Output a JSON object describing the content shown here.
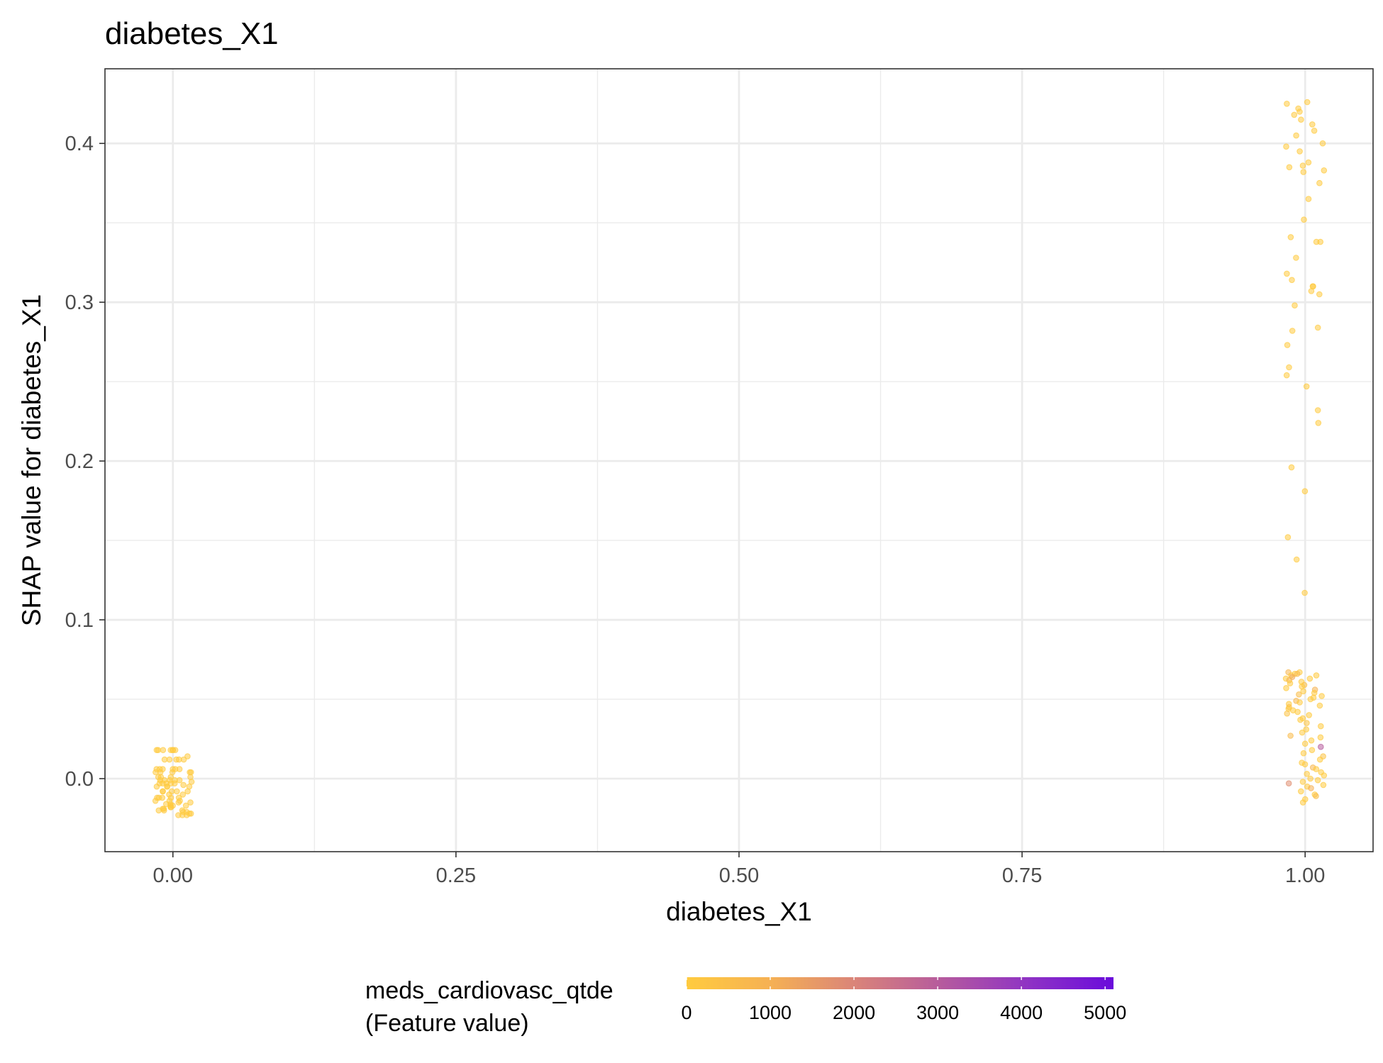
{
  "chart_data": {
    "type": "scatter",
    "title": "diabetes_X1",
    "xlabel": "diabetes_X1",
    "ylabel": "SHAP value for diabetes_X1",
    "xlim": [
      -0.06,
      1.06
    ],
    "ylim": [
      -0.046,
      0.447
    ],
    "x_ticks": [
      0.0,
      0.25,
      0.5,
      0.75,
      1.0
    ],
    "x_tick_labels": [
      "0.00",
      "0.25",
      "0.50",
      "0.75",
      "1.00"
    ],
    "y_ticks": [
      0.0,
      0.1,
      0.2,
      0.3,
      0.4
    ],
    "y_tick_labels": [
      "0.0",
      "0.1",
      "0.2",
      "0.3",
      "0.4"
    ],
    "grid": true,
    "legend": {
      "position": "bottom",
      "title_lines": [
        "meds_cardiovasc_qtde",
        "(Feature value)"
      ],
      "min": 0,
      "max": 5100,
      "ticks": [
        0,
        1000,
        2000,
        3000,
        4000,
        5000
      ],
      "colors": [
        "#ffcb3f",
        "#f5b054",
        "#d9837a",
        "#b55a9e",
        "#8f33c4",
        "#6a0bdb"
      ]
    },
    "series": [
      {
        "x": [
          0.0,
          0.0,
          0.0,
          0.0,
          0.0,
          0.0,
          0.0,
          0.0,
          0.0,
          0.0,
          0.0,
          0.0,
          0.0,
          0.0,
          0.0,
          0.0,
          0.0,
          0.0,
          0.0,
          0.0,
          0.0,
          0.0,
          0.0,
          0.0,
          0.0,
          0.0,
          0.0,
          0.0,
          0.0,
          0.0,
          0.0,
          0.0,
          0.0,
          0.0,
          0.0,
          0.0,
          0.0,
          0.0,
          0.0,
          0.0,
          0.0,
          0.0,
          0.0,
          0.0,
          0.0,
          0.0,
          0.0,
          0.0,
          0.0,
          0.0,
          0.0,
          0.0,
          0.0,
          0.0,
          0.0,
          0.0,
          0.0,
          0.0,
          0.0,
          0.0,
          0.0,
          0.0,
          0.0,
          0.0,
          0.0,
          0.0,
          0.0,
          0.0,
          0.0,
          0.0,
          0.0,
          0.0,
          0.0,
          0.0,
          0.0,
          0.0,
          0.0,
          0.0,
          0.0,
          0.0
        ],
        "y": [
          0.018,
          0.018,
          0.018,
          0.018,
          0.018,
          0.018,
          0.018,
          0.014,
          0.012,
          0.012,
          0.012,
          0.012,
          0.012,
          0.006,
          0.006,
          0.006,
          0.006,
          0.006,
          0.006,
          0.004,
          0.004,
          0.004,
          0.004,
          0.004,
          0.001,
          0.001,
          0.001,
          0.001,
          -0.001,
          -0.001,
          -0.001,
          -0.001,
          -0.001,
          -0.002,
          -0.003,
          -0.003,
          -0.003,
          -0.003,
          -0.003,
          -0.004,
          -0.005,
          -0.005,
          -0.005,
          -0.005,
          -0.008,
          -0.008,
          -0.008,
          -0.008,
          -0.008,
          -0.01,
          -0.01,
          -0.012,
          -0.012,
          -0.012,
          -0.012,
          -0.012,
          -0.014,
          -0.014,
          -0.014,
          -0.015,
          -0.015,
          -0.016,
          -0.016,
          -0.017,
          -0.017,
          -0.017,
          -0.018,
          -0.018,
          -0.019,
          -0.019,
          -0.02,
          -0.02,
          -0.02,
          -0.021,
          -0.021,
          -0.022,
          -0.022,
          -0.023,
          -0.023,
          -0.023
        ],
        "color": [
          0,
          0,
          0,
          0,
          0,
          0,
          0,
          0,
          0,
          0,
          0,
          0,
          0,
          0,
          0,
          0,
          0,
          0,
          0,
          0,
          0,
          0,
          0,
          0,
          0,
          0,
          0,
          0,
          0,
          0,
          0,
          0,
          0,
          0,
          0,
          0,
          0,
          0,
          0,
          0,
          0,
          0,
          0,
          0,
          0,
          0,
          0,
          0,
          0,
          0,
          0,
          0,
          0,
          0,
          0,
          0,
          0,
          0,
          0,
          0,
          0,
          0,
          0,
          0,
          0,
          0,
          0,
          0,
          0,
          0,
          0,
          0,
          0,
          0,
          0,
          0,
          0,
          0,
          0,
          0
        ]
      },
      {
        "x": [
          1.0,
          1.0,
          1.0,
          1.0,
          1.0,
          1.0,
          1.0,
          1.0,
          1.0,
          1.0,
          1.0,
          1.0,
          1.0,
          1.0,
          1.0,
          1.0,
          1.0,
          1.0,
          1.0,
          1.0,
          1.0,
          1.0,
          1.0,
          1.0,
          1.0,
          1.0,
          1.0,
          1.0,
          1.0,
          1.0,
          1.0,
          1.0,
          1.0,
          1.0,
          1.0,
          1.0,
          1.0,
          1.0,
          1.0,
          1.0,
          1.0,
          1.0,
          1.0,
          1.0,
          1.0,
          1.0,
          1.0,
          1.0,
          1.0,
          1.0,
          1.0,
          1.0,
          1.0,
          1.0,
          1.0,
          1.0,
          1.0,
          1.0,
          1.0,
          1.0,
          1.0,
          1.0,
          1.0,
          1.0,
          1.0,
          1.0,
          1.0,
          1.0,
          1.0,
          1.0,
          1.0,
          1.0,
          1.0,
          1.0,
          1.0,
          1.0,
          1.0,
          1.0,
          1.0,
          1.0,
          1.0,
          1.0,
          1.0,
          1.0,
          1.0,
          1.0,
          1.0,
          1.0,
          1.0,
          1.0,
          1.0,
          1.0,
          1.0,
          1.0,
          1.0,
          1.0,
          1.0,
          1.0,
          1.0,
          1.0,
          1.0,
          1.0,
          1.0,
          1.0,
          1.0,
          1.0,
          1.0,
          1.0,
          1.0,
          1.0
        ],
        "y": [
          0.426,
          0.425,
          0.422,
          0.42,
          0.418,
          0.415,
          0.412,
          0.408,
          0.405,
          0.4,
          0.398,
          0.395,
          0.388,
          0.386,
          0.385,
          0.383,
          0.382,
          0.375,
          0.365,
          0.352,
          0.341,
          0.338,
          0.338,
          0.328,
          0.318,
          0.314,
          0.31,
          0.31,
          0.307,
          0.305,
          0.298,
          0.284,
          0.282,
          0.273,
          0.259,
          0.254,
          0.247,
          0.232,
          0.224,
          0.196,
          0.181,
          0.152,
          0.138,
          0.117,
          0.067,
          0.067,
          0.066,
          0.066,
          0.065,
          0.065,
          0.064,
          0.063,
          0.063,
          0.062,
          0.061,
          0.06,
          0.059,
          0.058,
          0.057,
          0.056,
          0.055,
          0.054,
          0.053,
          0.052,
          0.051,
          0.05,
          0.049,
          0.048,
          0.047,
          0.046,
          0.045,
          0.044,
          0.043,
          0.042,
          0.041,
          0.04,
          0.038,
          0.037,
          0.035,
          0.033,
          0.031,
          0.029,
          0.027,
          0.026,
          0.024,
          0.022,
          0.02,
          0.018,
          0.016,
          0.014,
          0.012,
          0.01,
          0.009,
          0.007,
          0.006,
          0.004,
          0.003,
          0.002,
          0.0,
          -0.001,
          -0.002,
          -0.003,
          -0.004,
          -0.005,
          -0.006,
          -0.008,
          -0.01,
          -0.011,
          -0.013,
          -0.015
        ],
        "color": [
          0,
          0,
          50,
          0,
          0,
          0,
          0,
          0,
          0,
          0,
          0,
          0,
          0,
          0,
          0,
          0,
          0,
          0,
          0,
          0,
          0,
          0,
          0,
          0,
          0,
          0,
          0,
          0,
          0,
          0,
          0,
          0,
          0,
          0,
          0,
          0,
          0,
          0,
          0,
          0,
          0,
          0,
          0,
          0,
          800,
          0,
          0,
          600,
          0,
          0,
          1200,
          0,
          0,
          800,
          0,
          0,
          400,
          0,
          0,
          900,
          0,
          0,
          500,
          0,
          0,
          0,
          700,
          0,
          0,
          0,
          400,
          0,
          0,
          0,
          300,
          0,
          0,
          0,
          200,
          0,
          0,
          0,
          600,
          0,
          0,
          0,
          3000,
          0,
          0,
          300,
          0,
          0,
          0,
          800,
          0,
          0,
          0,
          0,
          0,
          0,
          0,
          1800,
          0,
          0,
          1000,
          0,
          0,
          500,
          0,
          0
        ]
      }
    ]
  }
}
